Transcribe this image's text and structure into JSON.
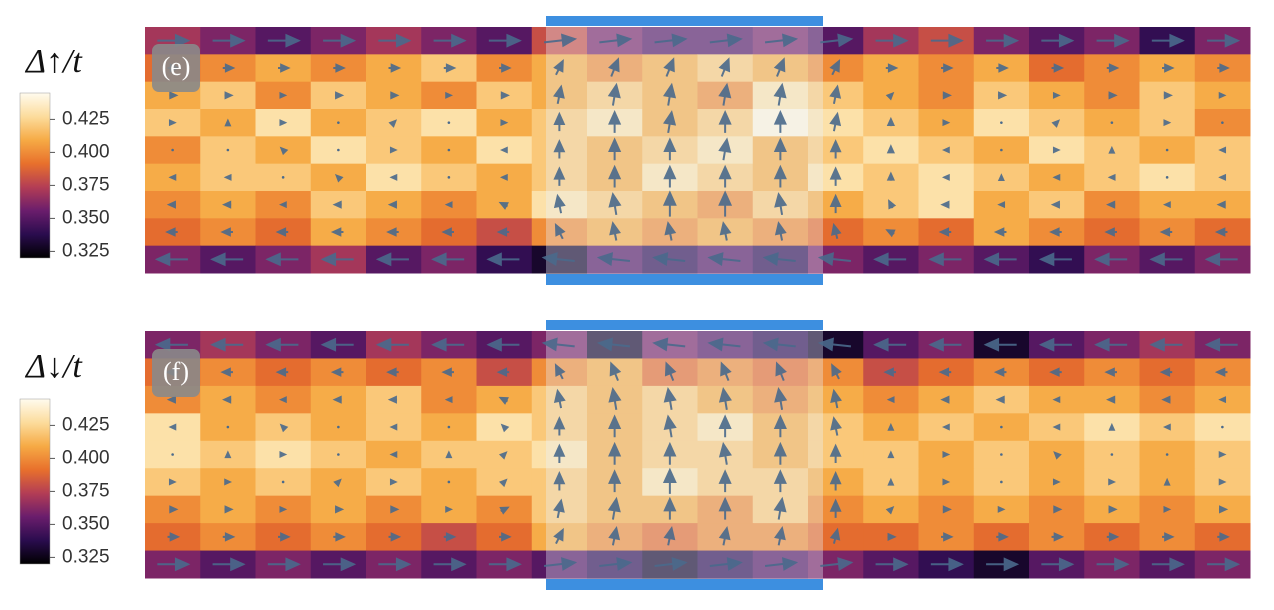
{
  "chart_data": [
    {
      "type": "heatmap",
      "panel_label": "(e)",
      "colorbar_label": "Δ↑/t",
      "clim": [
        0.32,
        0.445
      ],
      "cticks": [
        0.425,
        {
          "value": 0.4,
          "label": "0.400"
        },
        0.375,
        {
          "value": 0.35,
          "label": "0.350"
        },
        0.325
      ],
      "colormap": [
        "#000000",
        "#2a0c4e",
        "#6a1d6c",
        "#b33d55",
        "#e8702c",
        "#f6aa45",
        "#fcdc9c",
        "#fffbee"
      ],
      "arrow_color": "#4a6a8c",
      "values": [
        [
          0.37,
          0.36,
          0.35,
          0.36,
          0.37,
          0.36,
          0.35,
          0.38,
          0.36,
          0.35,
          0.35,
          0.36,
          0.35,
          0.37,
          0.38,
          0.36,
          0.35,
          0.36,
          0.34,
          0.36
        ],
        [
          0.39,
          0.4,
          0.41,
          0.4,
          0.41,
          0.42,
          0.4,
          0.41,
          0.4,
          0.41,
          0.42,
          0.41,
          0.4,
          0.41,
          0.4,
          0.41,
          0.39,
          0.4,
          0.41,
          0.4
        ],
        [
          0.41,
          0.42,
          0.4,
          0.42,
          0.41,
          0.4,
          0.42,
          0.41,
          0.42,
          0.41,
          0.4,
          0.43,
          0.42,
          0.41,
          0.4,
          0.42,
          0.41,
          0.4,
          0.42,
          0.41
        ],
        [
          0.42,
          0.41,
          0.43,
          0.41,
          0.42,
          0.43,
          0.41,
          0.42,
          0.43,
          0.41,
          0.42,
          0.44,
          0.43,
          0.42,
          0.41,
          0.43,
          0.42,
          0.41,
          0.42,
          0.4
        ],
        [
          0.4,
          0.42,
          0.41,
          0.43,
          0.42,
          0.41,
          0.43,
          0.42,
          0.41,
          0.42,
          0.43,
          0.41,
          0.42,
          0.43,
          0.42,
          0.41,
          0.43,
          0.42,
          0.41,
          0.42
        ],
        [
          0.41,
          0.42,
          0.42,
          0.41,
          0.43,
          0.42,
          0.41,
          0.42,
          0.41,
          0.43,
          0.42,
          0.41,
          0.43,
          0.42,
          0.43,
          0.42,
          0.41,
          0.42,
          0.43,
          0.42
        ],
        [
          0.4,
          0.41,
          0.4,
          0.42,
          0.41,
          0.4,
          0.41,
          0.43,
          0.42,
          0.41,
          0.4,
          0.42,
          0.41,
          0.42,
          0.43,
          0.41,
          0.42,
          0.4,
          0.41,
          0.41
        ],
        [
          0.39,
          0.4,
          0.39,
          0.41,
          0.4,
          0.39,
          0.38,
          0.4,
          0.41,
          0.4,
          0.41,
          0.4,
          0.39,
          0.4,
          0.39,
          0.41,
          0.4,
          0.39,
          0.4,
          0.39
        ],
        [
          0.36,
          0.35,
          0.36,
          0.37,
          0.35,
          0.36,
          0.34,
          0.33,
          0.35,
          0.34,
          0.35,
          0.34,
          0.36,
          0.35,
          0.36,
          0.35,
          0.34,
          0.36,
          0.35,
          0.36
        ]
      ],
      "u": [
        [
          9,
          9,
          9,
          9,
          9,
          9,
          9,
          9,
          9,
          9,
          9,
          9,
          9,
          9,
          9,
          9,
          9,
          9,
          9,
          9
        ],
        [
          3,
          3,
          3,
          3,
          3,
          3,
          3,
          2,
          2,
          2,
          2,
          2,
          2,
          3,
          3,
          3,
          3,
          3,
          3,
          3
        ],
        [
          2,
          2,
          1,
          2,
          2,
          1,
          2,
          1,
          1,
          1,
          1,
          1,
          1,
          1,
          2,
          2,
          1,
          2,
          2,
          1
        ],
        [
          1,
          0,
          1,
          0,
          1,
          0,
          1,
          0,
          0,
          1,
          0,
          0,
          1,
          0,
          1,
          0,
          1,
          0,
          1,
          0
        ],
        [
          0,
          0,
          -1,
          0,
          1,
          0,
          -1,
          0,
          0,
          0,
          1,
          0,
          0,
          0,
          -1,
          0,
          1,
          0,
          0,
          -1
        ],
        [
          -1,
          -1,
          0,
          -1,
          -1,
          0,
          -1,
          0,
          0,
          0,
          0,
          0,
          0,
          0,
          -1,
          0,
          -1,
          -1,
          0,
          -1
        ],
        [
          -2,
          -2,
          -1,
          -2,
          -2,
          -1,
          -2,
          -1,
          -1,
          0,
          0,
          -1,
          0,
          -1,
          -2,
          -1,
          -2,
          -2,
          -1,
          -2
        ],
        [
          -3,
          -3,
          -3,
          -3,
          -3,
          -3,
          -3,
          -2,
          -1,
          -1,
          -1,
          -1,
          -1,
          -2,
          -3,
          -3,
          -3,
          -3,
          -3,
          -3
        ],
        [
          -9,
          -9,
          -9,
          -9,
          -9,
          -9,
          -9,
          -9,
          -9,
          -9,
          -9,
          -9,
          -9,
          -9,
          -9,
          -9,
          -9,
          -9,
          -9,
          -9
        ]
      ],
      "v": [
        [
          0,
          0,
          0,
          0,
          0,
          0,
          0,
          1,
          1,
          1,
          1,
          1,
          1,
          0,
          0,
          0,
          0,
          0,
          0,
          0
        ],
        [
          0,
          0,
          0,
          0,
          0,
          0,
          0,
          4,
          5,
          5,
          5,
          5,
          4,
          0,
          0,
          0,
          0,
          0,
          0,
          0
        ],
        [
          0,
          0,
          0,
          0,
          0,
          0,
          0,
          5,
          6,
          6,
          6,
          6,
          5,
          1,
          0,
          0,
          0,
          0,
          0,
          0
        ],
        [
          0,
          1,
          0,
          0,
          1,
          0,
          0,
          5,
          6,
          6,
          6,
          6,
          5,
          2,
          0,
          0,
          1,
          0,
          0,
          0
        ],
        [
          0,
          0,
          1,
          0,
          0,
          0,
          0,
          5,
          6,
          6,
          6,
          6,
          5,
          2,
          0,
          0,
          0,
          1,
          0,
          0
        ],
        [
          0,
          0,
          0,
          1,
          0,
          0,
          0,
          5,
          6,
          6,
          6,
          6,
          5,
          2,
          0,
          1,
          0,
          0,
          0,
          0
        ],
        [
          0,
          0,
          0,
          0,
          0,
          0,
          1,
          5,
          6,
          7,
          7,
          6,
          5,
          2,
          0,
          0,
          0,
          0,
          0,
          0
        ],
        [
          0,
          0,
          0,
          0,
          0,
          0,
          0,
          4,
          5,
          5,
          5,
          5,
          4,
          1,
          0,
          0,
          0,
          0,
          0,
          0
        ],
        [
          0,
          0,
          0,
          0,
          0,
          0,
          0,
          1,
          1,
          1,
          1,
          1,
          1,
          0,
          0,
          0,
          0,
          0,
          0,
          0
        ]
      ]
    },
    {
      "type": "heatmap",
      "panel_label": "(f)",
      "colorbar_label": "Δ↓/t",
      "clim": [
        0.32,
        0.445
      ],
      "cticks": [
        0.425,
        {
          "value": 0.4,
          "label": "0.400"
        },
        0.375,
        {
          "value": 0.35,
          "label": "0.350"
        },
        0.325
      ],
      "colormap": [
        "#000000",
        "#2a0c4e",
        "#6a1d6c",
        "#b33d55",
        "#e8702c",
        "#f6aa45",
        "#fcdc9c",
        "#fffbee"
      ],
      "arrow_color": "#4a6a8c",
      "values": [
        [
          0.36,
          0.37,
          0.36,
          0.35,
          0.37,
          0.36,
          0.35,
          0.36,
          0.33,
          0.36,
          0.35,
          0.34,
          0.33,
          0.35,
          0.36,
          0.33,
          0.35,
          0.36,
          0.37,
          0.36
        ],
        [
          0.39,
          0.4,
          0.39,
          0.4,
          0.39,
          0.4,
          0.38,
          0.4,
          0.41,
          0.39,
          0.4,
          0.39,
          0.4,
          0.38,
          0.39,
          0.4,
          0.39,
          0.4,
          0.39,
          0.4
        ],
        [
          0.4,
          0.41,
          0.4,
          0.41,
          0.42,
          0.4,
          0.41,
          0.42,
          0.41,
          0.42,
          0.41,
          0.4,
          0.41,
          0.4,
          0.41,
          0.42,
          0.41,
          0.41,
          0.4,
          0.41
        ],
        [
          0.43,
          0.41,
          0.42,
          0.41,
          0.42,
          0.41,
          0.43,
          0.42,
          0.41,
          0.42,
          0.43,
          0.41,
          0.42,
          0.41,
          0.42,
          0.41,
          0.42,
          0.43,
          0.42,
          0.43
        ],
        [
          0.43,
          0.42,
          0.43,
          0.42,
          0.41,
          0.42,
          0.42,
          0.43,
          0.41,
          0.42,
          0.42,
          0.41,
          0.42,
          0.42,
          0.41,
          0.42,
          0.41,
          0.42,
          0.41,
          0.42
        ],
        [
          0.42,
          0.41,
          0.42,
          0.41,
          0.42,
          0.41,
          0.42,
          0.42,
          0.41,
          0.43,
          0.42,
          0.42,
          0.41,
          0.42,
          0.41,
          0.42,
          0.41,
          0.42,
          0.41,
          0.42
        ],
        [
          0.4,
          0.41,
          0.4,
          0.41,
          0.4,
          0.41,
          0.4,
          0.42,
          0.41,
          0.41,
          0.4,
          0.42,
          0.4,
          0.41,
          0.4,
          0.41,
          0.4,
          0.41,
          0.4,
          0.41
        ],
        [
          0.39,
          0.4,
          0.39,
          0.4,
          0.39,
          0.38,
          0.39,
          0.41,
          0.4,
          0.39,
          0.4,
          0.4,
          0.39,
          0.39,
          0.4,
          0.39,
          0.4,
          0.39,
          0.4,
          0.39
        ],
        [
          0.36,
          0.35,
          0.36,
          0.35,
          0.36,
          0.35,
          0.36,
          0.35,
          0.34,
          0.33,
          0.34,
          0.35,
          0.36,
          0.35,
          0.34,
          0.33,
          0.35,
          0.36,
          0.35,
          0.36
        ]
      ],
      "u": [
        [
          -9,
          -9,
          -9,
          -9,
          -9,
          -9,
          -9,
          -9,
          -9,
          -9,
          -9,
          -9,
          -9,
          -9,
          -9,
          -9,
          -9,
          -9,
          -9,
          -9
        ],
        [
          -3,
          -3,
          -3,
          -3,
          -3,
          -3,
          -3,
          -2,
          -2,
          -2,
          -2,
          -2,
          -2,
          -3,
          -3,
          -3,
          -3,
          -3,
          -3,
          -3
        ],
        [
          -2,
          -2,
          -1,
          -2,
          -2,
          -1,
          -2,
          -1,
          -1,
          -1,
          -1,
          -1,
          -1,
          -1,
          -2,
          -2,
          -1,
          -2,
          -2,
          -1
        ],
        [
          -1,
          0,
          -1,
          0,
          -1,
          0,
          -1,
          0,
          0,
          -1,
          0,
          0,
          -1,
          0,
          -1,
          0,
          -1,
          0,
          -1,
          0
        ],
        [
          0,
          0,
          1,
          0,
          -1,
          0,
          1,
          0,
          0,
          0,
          -1,
          0,
          0,
          0,
          1,
          0,
          -1,
          0,
          0,
          1
        ],
        [
          1,
          1,
          0,
          1,
          1,
          0,
          1,
          0,
          0,
          0,
          0,
          0,
          0,
          0,
          1,
          0,
          1,
          1,
          0,
          1
        ],
        [
          2,
          2,
          1,
          2,
          2,
          1,
          2,
          1,
          1,
          0,
          0,
          1,
          0,
          1,
          2,
          1,
          2,
          2,
          1,
          2
        ],
        [
          3,
          3,
          3,
          3,
          3,
          3,
          3,
          2,
          1,
          1,
          1,
          1,
          1,
          2,
          3,
          3,
          3,
          3,
          3,
          3
        ],
        [
          9,
          9,
          9,
          9,
          9,
          9,
          9,
          9,
          9,
          9,
          9,
          9,
          9,
          9,
          9,
          9,
          9,
          9,
          9,
          9
        ]
      ],
      "v": [
        [
          0,
          0,
          0,
          0,
          0,
          0,
          0,
          1,
          1,
          1,
          1,
          1,
          1,
          0,
          0,
          0,
          0,
          0,
          0,
          0
        ],
        [
          0,
          0,
          0,
          0,
          0,
          0,
          0,
          4,
          5,
          5,
          5,
          5,
          4,
          0,
          0,
          0,
          0,
          0,
          0,
          0
        ],
        [
          0,
          0,
          0,
          0,
          0,
          0,
          1,
          5,
          6,
          6,
          6,
          6,
          5,
          0,
          0,
          0,
          0,
          0,
          0,
          0
        ],
        [
          0,
          0,
          1,
          0,
          0,
          0,
          1,
          5,
          6,
          6,
          6,
          6,
          5,
          1,
          0,
          0,
          0,
          1,
          0,
          0
        ],
        [
          0,
          1,
          0,
          0,
          0,
          1,
          1,
          5,
          6,
          6,
          6,
          6,
          5,
          1,
          0,
          0,
          1,
          0,
          0,
          0
        ],
        [
          0,
          0,
          0,
          1,
          0,
          0,
          1,
          5,
          6,
          7,
          6,
          6,
          5,
          1,
          0,
          0,
          0,
          0,
          1,
          0
        ],
        [
          0,
          0,
          0,
          0,
          0,
          0,
          1,
          5,
          6,
          6,
          6,
          6,
          5,
          1,
          0,
          0,
          0,
          0,
          0,
          0
        ],
        [
          0,
          0,
          0,
          0,
          0,
          0,
          0,
          4,
          5,
          5,
          5,
          5,
          4,
          0,
          0,
          0,
          0,
          0,
          0,
          0
        ],
        [
          0,
          0,
          0,
          0,
          0,
          0,
          0,
          1,
          1,
          1,
          1,
          1,
          1,
          0,
          0,
          0,
          0,
          0,
          0,
          0
        ]
      ]
    }
  ]
}
